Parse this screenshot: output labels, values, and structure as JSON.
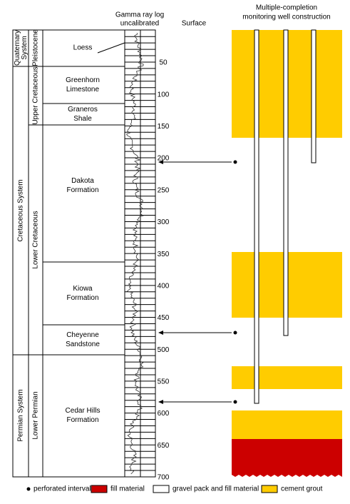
{
  "header": {
    "gamma_log": [
      "Gamma ray log",
      "uncalibrated"
    ],
    "surface": "Surface",
    "well": [
      "Multiple-completion",
      "monitoring well construction"
    ]
  },
  "systems": [
    "Quaternary System",
    "Cretaceous System",
    "Permian System"
  ],
  "series": [
    "Pleistocene",
    "Upper Cretaceous",
    "Lower Cretaceous",
    "Lower Permian"
  ],
  "formations": [
    [
      "Loess"
    ],
    [
      "Greenhorn",
      "Limestone"
    ],
    [
      "Graneros",
      "Shale"
    ],
    [
      "Dakota",
      "Formation"
    ],
    [
      "Kiowa",
      "Formation"
    ],
    [
      "Cheyenne",
      "Sandstone"
    ],
    [
      "Cedar Hills",
      "Formation"
    ]
  ],
  "depth_ticks": [
    50,
    100,
    150,
    200,
    250,
    300,
    350,
    400,
    450,
    500,
    550,
    600,
    650,
    700
  ],
  "legend": [
    "perforated interval",
    "fill material",
    "gravel pack and fill material",
    "cement grout"
  ]
}
